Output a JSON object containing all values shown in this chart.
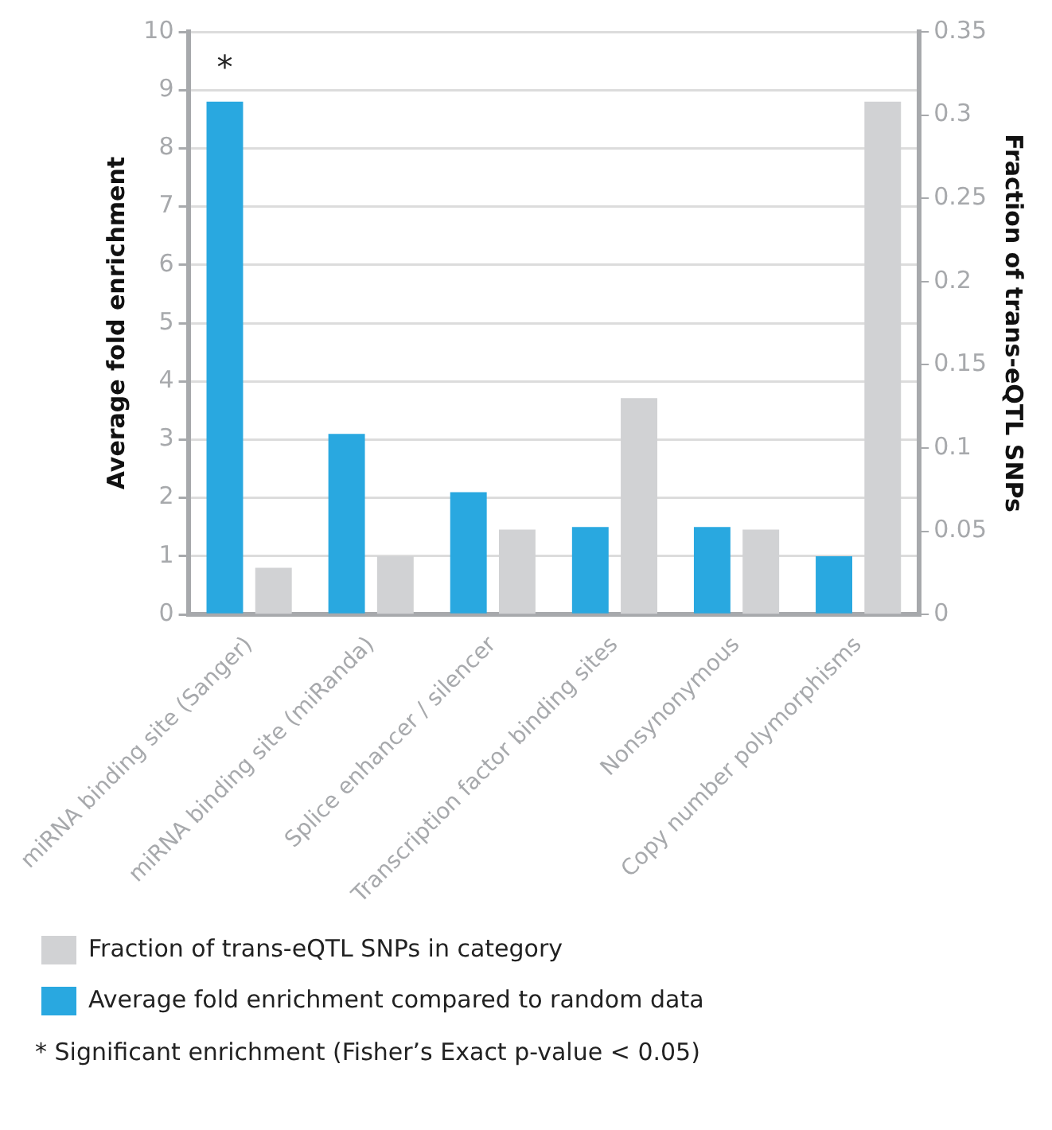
{
  "chart_data": {
    "type": "bar",
    "ylabel": "Average fold enrichment",
    "y2label": "Fraction of trans-eQTL SNPs",
    "categories": [
      "miRNA binding site (Sanger)",
      "miRNA binding site (miRanda)",
      "Splice enhancer / silencer",
      "Transcription factor binding sites",
      "Nonsynonymous",
      "Copy number polymorphisms"
    ],
    "series": [
      {
        "name": "Average fold enrichment compared to random data",
        "color": "#29a8e0",
        "values": [
          8.8,
          3.1,
          2.1,
          1.5,
          1.5,
          1.0
        ]
      },
      {
        "name": "Fraction of trans-eQTL SNPs in category",
        "color": "#d1d2d4",
        "axis": "y2",
        "values": [
          0.028,
          0.035,
          0.051,
          0.13,
          0.051,
          0.308
        ]
      }
    ],
    "ylim": [
      0,
      10
    ],
    "yticks": [
      0,
      1,
      2,
      3,
      4,
      5,
      6,
      7,
      8,
      9,
      10
    ],
    "y2lim": [
      0,
      0.35
    ],
    "y2ticks": [
      0,
      0.05,
      0.1,
      0.15,
      0.2,
      0.25,
      0.3,
      0.35
    ],
    "grid": "y",
    "legend": "bottom",
    "annotations": [
      {
        "text": "*",
        "x": "miRNA binding site (Sanger)",
        "y": 8.8
      },
      "*  Significant enrichment (Fisher’s Exact p-value < 0.05)"
    ]
  }
}
